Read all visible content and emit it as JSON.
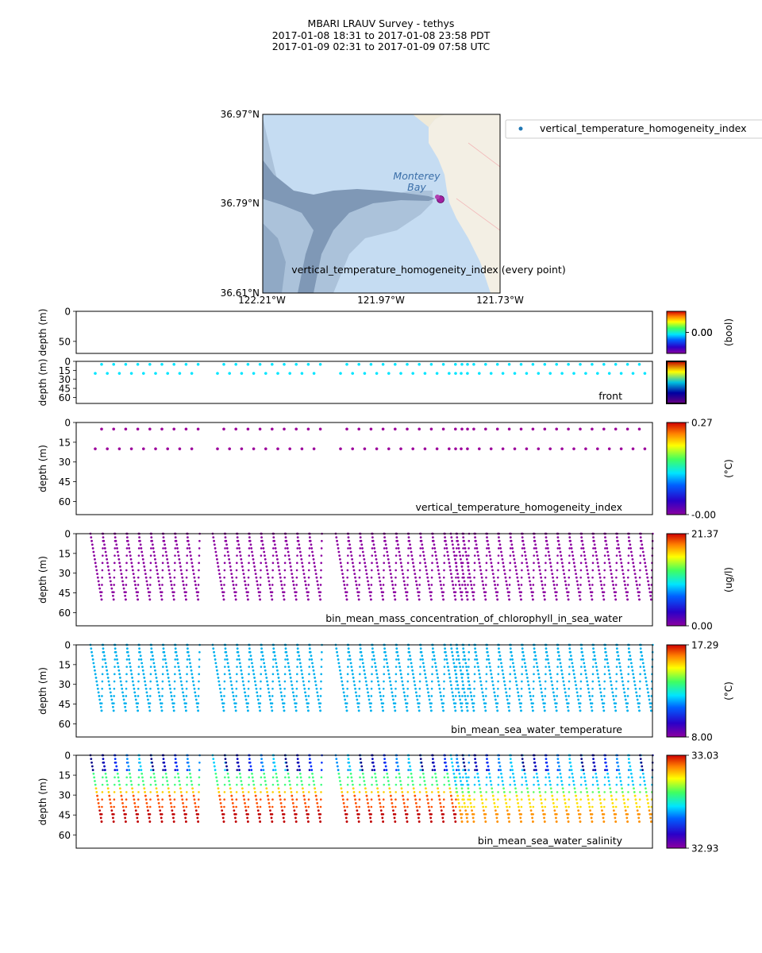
{
  "header": {
    "line1": "MBARI LRAUV Survey - tethys",
    "line2": "2017-01-08 18:31  to  2017-01-08 23:58 PDT",
    "line3": "2017-01-09 02:31  to  2017-01-09 07:58 UTC"
  },
  "map": {
    "lat_labels": [
      "36.97°N",
      "36.79°N",
      "36.61°N"
    ],
    "lon_labels": [
      "122.21°W",
      "121.97°W",
      "121.73°W"
    ],
    "place_label_1": "Monterey",
    "place_label_2": "Bay",
    "legend_label": "vertical_temperature_homogeneity_index",
    "caption": "vertical_temperature_homogeneity_index (every point)",
    "colors": {
      "land": "#f3efe4",
      "water": "#c5dcf2",
      "deep": "#7f98b6",
      "marker": "#a020a0"
    }
  },
  "chart_data": [
    {
      "type": "scatter",
      "name": "empty-bool",
      "ylabel": "depth (m)",
      "yticks": [
        0,
        50
      ],
      "ylim": [
        0,
        70
      ],
      "series_label": "",
      "colorbar": {
        "ticks": [
          "0.00",
          "0.00"
        ],
        "label": "(bool)"
      }
    },
    {
      "type": "scatter",
      "name": "front",
      "ylabel": "depth (m)",
      "yticks": [
        0,
        15,
        30,
        45,
        60
      ],
      "ylim": [
        0,
        70
      ],
      "series_label": "front",
      "point_color": "#00e5ff",
      "depths": [
        5,
        20
      ],
      "colorbar": {
        "ticks": [],
        "label": ""
      }
    },
    {
      "type": "scatter",
      "name": "vertical_temperature_homogeneity_index",
      "ylabel": "depth (m)",
      "yticks": [
        0,
        15,
        30,
        45,
        60
      ],
      "ylim": [
        0,
        70
      ],
      "series_label": "vertical_temperature_homogeneity_index",
      "point_color": "#9b009b",
      "depths": [
        5,
        20
      ],
      "colorbar": {
        "ticks": [
          "0.27",
          "-0.00"
        ],
        "label": "(°C)"
      }
    },
    {
      "type": "scatter",
      "name": "chlorophyll",
      "ylabel": "depth (m)",
      "yticks": [
        0,
        15,
        30,
        45,
        60
      ],
      "ylim": [
        0,
        70
      ],
      "series_label": "bin_mean_mass_concentration_of_chlorophyll_in_sea_water",
      "point_color": "#8b00a0",
      "max_depth": 50,
      "colorbar": {
        "ticks": [
          "21.37",
          "0.00"
        ],
        "label": "(ug/l)"
      }
    },
    {
      "type": "scatter",
      "name": "temperature",
      "ylabel": "depth (m)",
      "yticks": [
        0,
        15,
        30,
        45,
        60
      ],
      "ylim": [
        0,
        70
      ],
      "series_label": "bin_mean_sea_water_temperature",
      "point_color": "#00b0ee",
      "max_depth": 50,
      "colorbar": {
        "ticks": [
          "17.29",
          "8.00"
        ],
        "label": "(°C)"
      }
    },
    {
      "type": "scatter",
      "name": "salinity",
      "ylabel": "depth (m)",
      "yticks": [
        0,
        15,
        30,
        45,
        60
      ],
      "ylim": [
        0,
        70
      ],
      "series_label": "bin_mean_sea_water_salinity",
      "max_depth": 50,
      "colorbar": {
        "ticks": [
          "33.03",
          "32.93"
        ],
        "label": ""
      }
    }
  ]
}
